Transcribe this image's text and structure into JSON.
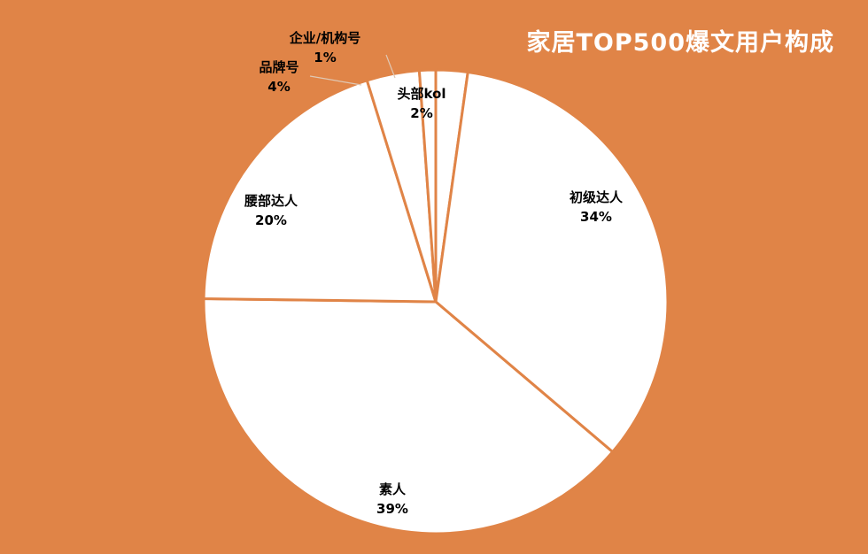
{
  "title": "家居TOP500爆文用户构成",
  "colors": {
    "background": "#E08447",
    "slice_fill": "#FFFFFF",
    "slice_border": "#E08447",
    "label_text": "#000000",
    "title_text": "#FFFFFF",
    "leader_line": "#E0C8B4"
  },
  "chart_data": {
    "type": "pie",
    "title": "家居TOP500爆文用户构成",
    "start": "12 o'clock",
    "direction": "clockwise",
    "slices": [
      {
        "label": "头部kol",
        "pct_label": "2%",
        "value": 2.21
      },
      {
        "label": "初级达人",
        "pct_label": "34%",
        "value": 34.0
      },
      {
        "label": "素人",
        "pct_label": "39%",
        "value": 39.0
      },
      {
        "label": "腰部达人",
        "pct_label": "20%",
        "value": 20.0
      },
      {
        "label": "品牌号",
        "pct_label": "4%",
        "value": 3.66
      },
      {
        "label": "企业/机构号",
        "pct_label": "1%",
        "value": 1.13
      }
    ]
  }
}
